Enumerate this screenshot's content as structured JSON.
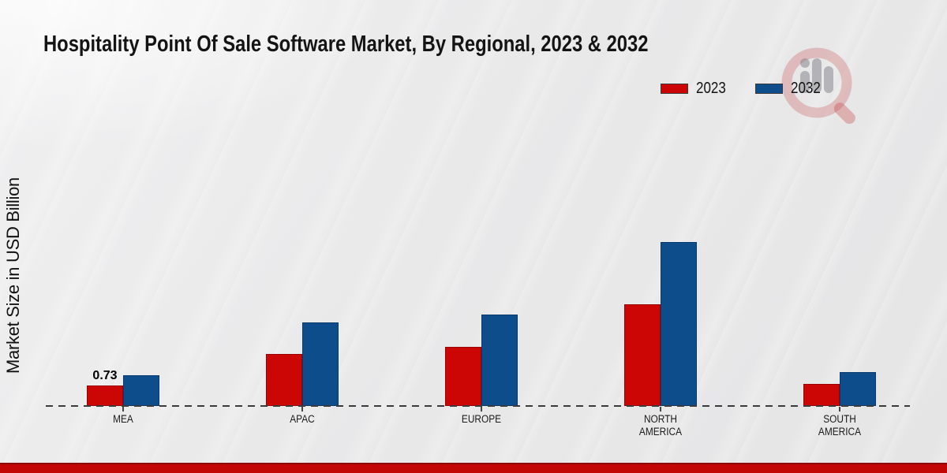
{
  "accent_bar": {
    "dark": "#8f0606",
    "main": "#c20606"
  },
  "watermark_icon": "magnifier-bar-chart-logo",
  "chart_data": {
    "type": "bar",
    "title": "Hospitality Point Of Sale Software Market, By Regional, 2023 & 2032",
    "ylabel": "Market Size in USD Billion",
    "xlabel": "",
    "categories": [
      "MEA",
      "APAC",
      "EUROPE",
      "NORTH AMERICA",
      "SOUTH AMERICA"
    ],
    "series": [
      {
        "name": "2023",
        "color": "#cc0505",
        "border_color": "#9a0303",
        "values": [
          0.73,
          1.85,
          2.1,
          3.62,
          0.79
        ]
      },
      {
        "name": "2032",
        "color": "#0d4d8c",
        "border_color": "#083a6d",
        "values": [
          1.1,
          2.98,
          3.26,
          5.85,
          1.21
        ]
      }
    ],
    "annotations": [
      {
        "category_index": 0,
        "series_index": 0,
        "text": "0.73"
      }
    ],
    "ylim": [
      0,
      6.5
    ],
    "grid": false,
    "y_axis_ticks_visible": false,
    "baseline_style": "dashed",
    "legend_position": "top-right"
  }
}
